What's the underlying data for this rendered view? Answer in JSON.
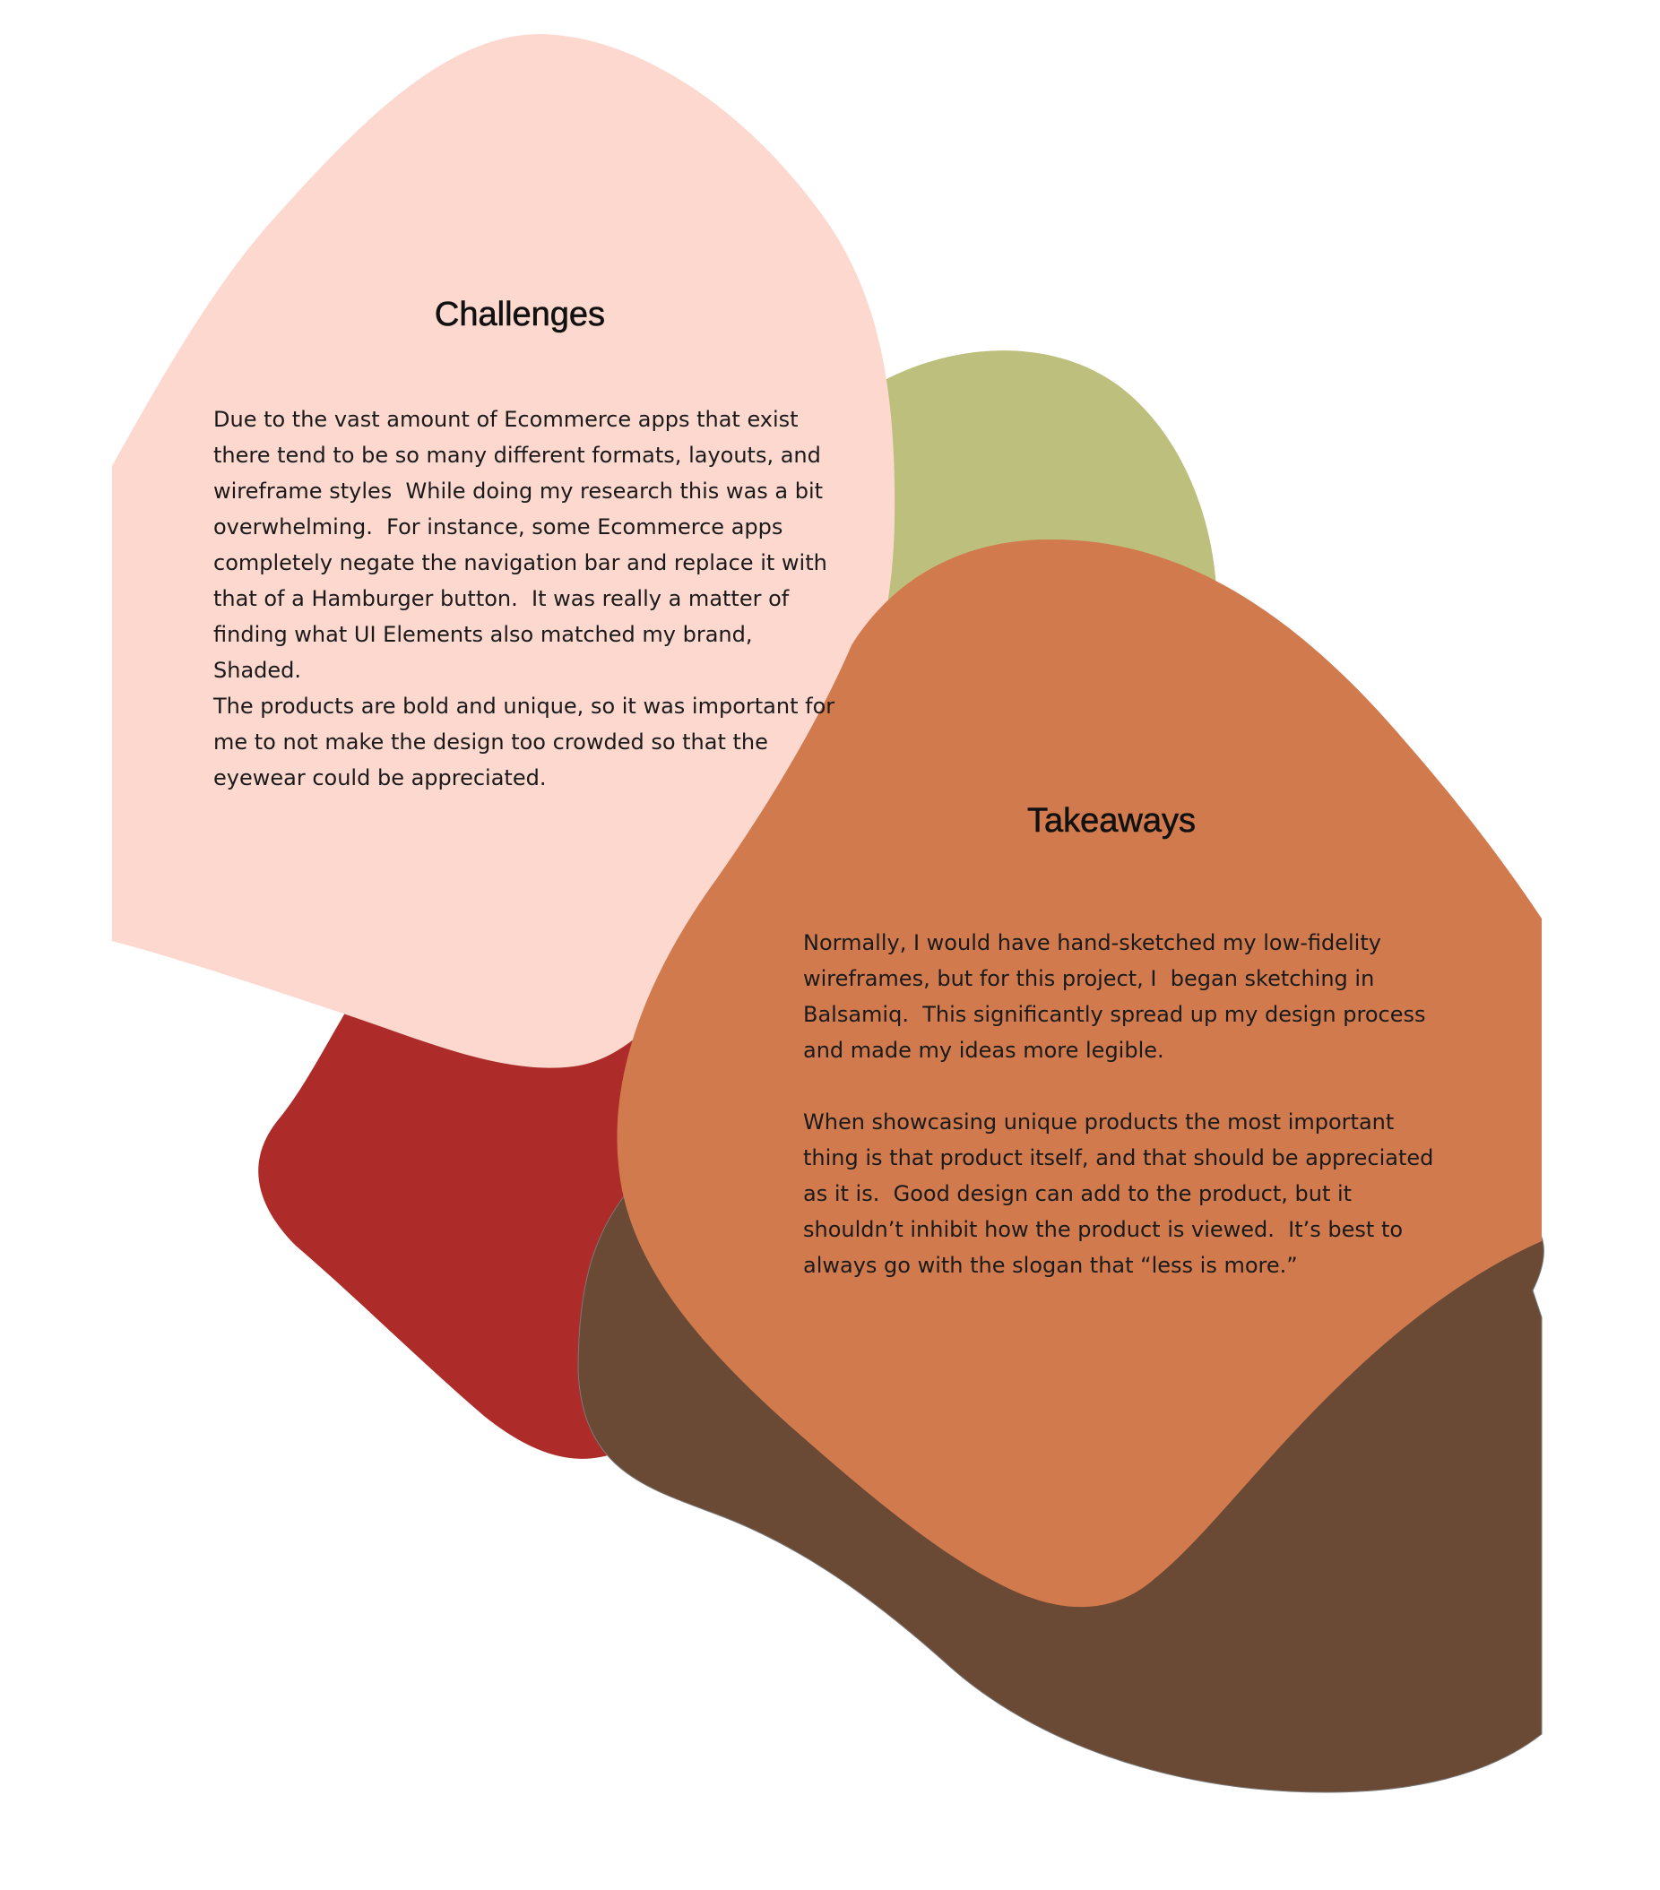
{
  "colors": {
    "background": "#ffffff",
    "pink_blob": "#fdd8cf",
    "olive_blob": "#bdbf7c",
    "red_blob": "#ad2b28",
    "brown_blob": "#6a4a35",
    "orange_blob": "#d17a4e",
    "text": "#1a1a1a"
  },
  "challenges": {
    "title": "Challenges",
    "body": "Due to the vast amount of Ecommerce apps that exist\nthere tend to be so many different formats, layouts, and\nwireframe styles  While doing my research this was a bit\noverwhelming.  For instance, some Ecommerce apps\ncompletely negate the navigation bar and replace it with\nthat of a Hamburger button.  It was really a matter of\nfinding what UI Elements also matched my brand, Shaded.\nThe products are bold and unique, so it was important for\nme to not make the design too crowded so that the\neyewear could be appreciated."
  },
  "takeaways": {
    "title": "Takeaways",
    "paragraph_1": "Normally, I would have hand-sketched my low-fidelity\nwireframes, but for this project, I  began sketching in\nBalsamiq.  This significantly spread up my design process\nand made my ideas more legible.",
    "paragraph_2": "When showcasing unique products the most important\nthing is that product itself, and that should be appreciated\nas it is.  Good design can add to the product, but it\nshouldn’t inhibit how the product is viewed.  It’s best to\nalways go with the slogan that “less is more.”"
  }
}
